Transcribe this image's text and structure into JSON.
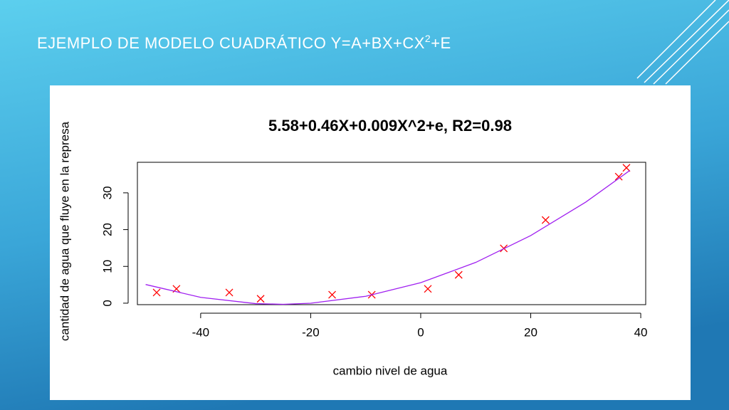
{
  "slide_title": {
    "main": "EJEMPLO DE MODELO CUADRÁTICO Y=A+BX+CX",
    "sup": "2",
    "tail": "+E"
  },
  "chart_data": {
    "type": "scatter",
    "title": "5.58+0.46X+0.009X^2+e, R2=0.98",
    "x_label": "cambio nivel de agua",
    "y_label": "cantidad de agua que fluye en la represa",
    "xlim": [
      -51.5,
      40.9
    ],
    "ylim": [
      -0.4,
      38.3
    ],
    "xticks": [
      -40,
      -20,
      0,
      20,
      40
    ],
    "yticks": [
      0,
      10,
      20,
      30
    ],
    "series": [
      {
        "type": "scatter",
        "color": "#ff0000",
        "x": [
          -48.0,
          -44.4,
          -34.8,
          -29.1,
          -16.1,
          -8.9,
          1.3,
          6.9,
          15.1,
          22.7,
          36.0,
          37.4
        ],
        "values": [
          2.9,
          3.9,
          2.9,
          1.2,
          2.3,
          2.3,
          3.9,
          7.7,
          14.9,
          22.6,
          34.4,
          36.8
        ]
      },
      {
        "type": "line",
        "color": "#a020f0",
        "x": [
          -50,
          -40,
          -30,
          -25,
          -20,
          -10,
          0,
          10,
          20,
          30,
          38
        ],
        "values": [
          5.08,
          1.58,
          -0.12,
          -0.3,
          -0.02,
          1.88,
          5.58,
          11.08,
          18.38,
          27.48,
          36.06
        ]
      }
    ]
  }
}
